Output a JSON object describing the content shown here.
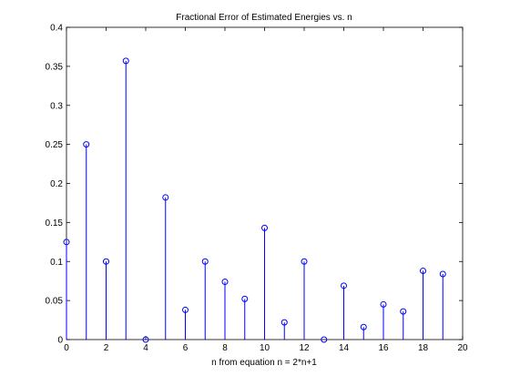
{
  "chart_data": {
    "type": "stem",
    "title": "Fractional Error of Estimated Energies vs. n",
    "xlabel": "n from equation n = 2*n+1",
    "ylabel": "",
    "xlim": [
      0,
      20
    ],
    "ylim": [
      0,
      0.4
    ],
    "xticks": [
      0,
      2,
      4,
      6,
      8,
      10,
      12,
      14,
      16,
      18,
      20
    ],
    "xtick_labels": [
      "0",
      "2",
      "4",
      "6",
      "8",
      "10",
      "12",
      "14",
      "16",
      "18",
      "20"
    ],
    "yticks": [
      0,
      0.05,
      0.1,
      0.15,
      0.2,
      0.25,
      0.3,
      0.35,
      0.4
    ],
    "ytick_labels": [
      "0",
      "0.05",
      "0.1",
      "0.15",
      "0.2",
      "0.25",
      "0.3",
      "0.35",
      "0.4"
    ],
    "grid": false,
    "legend": "none",
    "marker": "open circle",
    "color": "#0000ff",
    "x": [
      0,
      1,
      2,
      3,
      4,
      5,
      6,
      7,
      8,
      9,
      10,
      11,
      12,
      13,
      14,
      15,
      16,
      17,
      18,
      19
    ],
    "values": [
      0.125,
      0.25,
      0.1,
      0.357,
      0.0,
      0.182,
      0.038,
      0.1,
      0.074,
      0.052,
      0.143,
      0.022,
      0.1,
      0.0,
      0.069,
      0.016,
      0.045,
      0.036,
      0.088,
      0.084
    ]
  }
}
